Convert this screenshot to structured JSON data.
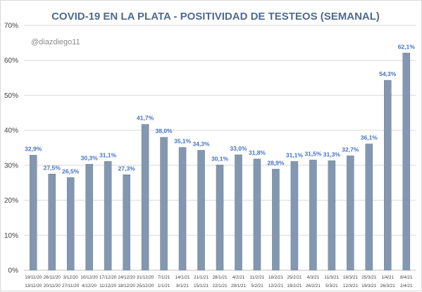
{
  "chart_data": {
    "type": "bar",
    "title": "COVID-19 EN LA PLATA - POSITIVIDAD DE TESTEOS (SEMANAL)",
    "watermark": "@diazdiego11",
    "xlabel": "",
    "ylabel": "",
    "ylim": [
      0,
      70
    ],
    "y_step": 10,
    "y_tick_labels": [
      "0%",
      "10%",
      "20%",
      "30%",
      "40%",
      "50%",
      "60%",
      "70%"
    ],
    "grid": true,
    "legend": "none",
    "bar_color": "#8497b0",
    "label_color": "#4472c4",
    "title_color": "#4f6a8f",
    "categories_top": [
      "19/11/20",
      "26/11/20",
      "3/12/20",
      "10/12/20",
      "17/12/20",
      "24/12/20",
      "31/12/20",
      "7/1/21",
      "14/1/21",
      "21/1/21",
      "28/1/21",
      "4/2/21",
      "11/2/21",
      "18/2/21",
      "25/2/21",
      "4/3/21",
      "11/3/21",
      "18/3/21",
      "25/3/21",
      "1/4/21",
      "8/4/21"
    ],
    "categories_bottom": [
      "13/11/20",
      "20/11/20",
      "27/11/20",
      "4/12/20",
      "11/12/20",
      "18/12/20",
      "25/12/20",
      "1/1/21",
      "8/1/21",
      "15/1/21",
      "22/1/21",
      "29/1/21",
      "5/2/21",
      "12/2/21",
      "19/2/21",
      "26/2/21",
      "5/3/21",
      "12/3/21",
      "19/3/21",
      "26/3/21",
      "2/4/21"
    ],
    "values": [
      32.9,
      27.5,
      26.5,
      30.3,
      31.1,
      27.3,
      41.7,
      38.0,
      35.1,
      34.3,
      30.1,
      33.0,
      31.8,
      28.9,
      31.1,
      31.5,
      31.3,
      32.7,
      36.1,
      54.3,
      62.1
    ],
    "value_labels": [
      "32,9%",
      "27,5%",
      "26,5%",
      "30,3%",
      "31,1%",
      "27,3%",
      "41,7%",
      "38,0%",
      "35,1%",
      "34,3%",
      "30,1%",
      "33,0%",
      "31,8%",
      "28,9%",
      "31,1%",
      "31,5%",
      "31,3%",
      "32,7%",
      "36,1%",
      "54,3%",
      "62,1%"
    ]
  }
}
